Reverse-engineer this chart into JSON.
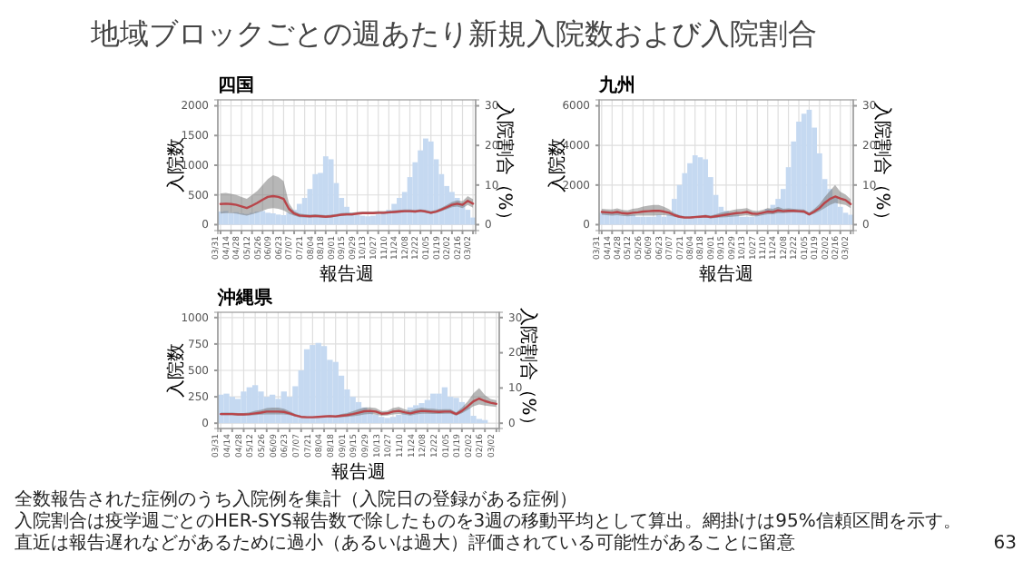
{
  "chart_data": [
    {
      "type": "bar",
      "title": "四国",
      "xlabel": "報告週",
      "ylabel": "入院数",
      "y2label": "入院割合（%）",
      "categories": [
        "03/31",
        null,
        "04/14",
        null,
        "04/28",
        null,
        "05/12",
        null,
        "05/26",
        null,
        "06/09",
        null,
        "06/23",
        null,
        "07/07",
        null,
        "07/21",
        null,
        "08/04",
        null,
        "08/18",
        null,
        "09/01",
        null,
        "09/15",
        null,
        "09/29",
        null,
        "10/13",
        null,
        "10/27",
        null,
        "11/10",
        null,
        "11/24",
        null,
        "12/08",
        null,
        "12/22",
        null,
        "01/05",
        null,
        "01/19",
        null,
        "02/02",
        null,
        "02/16",
        null,
        "03/02"
      ],
      "ylim": [
        -100,
        2100
      ],
      "yticks": [
        0,
        500,
        1000,
        1500,
        2000
      ],
      "y2lim": [
        -1.5,
        31.5
      ],
      "y2ticks": [
        0,
        10,
        20,
        30
      ],
      "grid": true,
      "series": [
        {
          "type": "bar",
          "color": "#c5d9f1",
          "values": [
            220,
            230,
            200,
            210,
            190,
            180,
            200,
            220,
            230,
            200,
            190,
            170,
            160,
            200,
            250,
            350,
            450,
            600,
            850,
            870,
            1150,
            1100,
            700,
            450,
            300,
            200,
            160,
            150,
            140,
            150,
            170,
            200,
            250,
            350,
            450,
            550,
            800,
            1050,
            1250,
            1450,
            1400,
            1100,
            850,
            650,
            550,
            450,
            350,
            250,
            120
          ]
        },
        {
          "type": "line",
          "axis": "y2",
          "color": "#b8454a",
          "values": [
            5.2,
            5.3,
            5.2,
            5.0,
            4.6,
            4.2,
            4.8,
            5.5,
            6.3,
            7.0,
            7.2,
            7.0,
            6.5,
            4.0,
            2.8,
            2.3,
            2.2,
            2.1,
            2.2,
            2.1,
            2.0,
            2.1,
            2.3,
            2.5,
            2.6,
            2.6,
            2.8,
            2.9,
            2.9,
            2.9,
            3.0,
            3.0,
            3.1,
            3.2,
            3.3,
            3.4,
            3.4,
            3.3,
            3.5,
            3.3,
            3.0,
            3.3,
            3.8,
            4.4,
            5.0,
            5.3,
            5.0,
            6.0,
            5.3
          ],
          "lower": [
            2.8,
            2.9,
            2.9,
            2.8,
            2.5,
            2.3,
            2.6,
            3.0,
            3.5,
            4.0,
            4.2,
            4.0,
            3.6,
            2.8,
            2.3,
            1.9,
            1.8,
            1.8,
            1.9,
            1.8,
            1.7,
            1.8,
            2.0,
            2.2,
            2.3,
            2.3,
            2.5,
            2.6,
            2.6,
            2.6,
            2.7,
            2.7,
            2.8,
            2.9,
            3.0,
            3.1,
            3.1,
            3.0,
            3.2,
            3.0,
            2.7,
            3.0,
            3.4,
            3.9,
            4.4,
            4.6,
            4.2,
            5.0,
            4.3
          ],
          "upper": [
            7.9,
            8.0,
            7.8,
            7.5,
            7.0,
            6.5,
            7.5,
            8.5,
            10.0,
            11.5,
            12.5,
            12.0,
            11.0,
            5.5,
            3.4,
            2.8,
            2.6,
            2.5,
            2.6,
            2.5,
            2.4,
            2.5,
            2.7,
            2.9,
            3.0,
            3.0,
            3.2,
            3.3,
            3.3,
            3.3,
            3.4,
            3.4,
            3.5,
            3.6,
            3.7,
            3.8,
            3.8,
            3.7,
            3.9,
            3.7,
            3.4,
            3.7,
            4.3,
            5.0,
            5.7,
            6.1,
            5.9,
            7.2,
            6.4
          ]
        }
      ]
    },
    {
      "type": "bar",
      "title": "九州",
      "xlabel": "報告週",
      "ylabel": "入院数",
      "y2label": "入院割合（%）",
      "categories": [
        "03/31",
        null,
        "04/14",
        null,
        "04/28",
        null,
        "05/12",
        null,
        "05/26",
        null,
        "06/09",
        null,
        "06/23",
        null,
        "07/07",
        null,
        "07/21",
        null,
        "08/04",
        null,
        "08/18",
        null,
        "09/01",
        null,
        "09/15",
        null,
        "09/29",
        null,
        "10/13",
        null,
        "10/27",
        null,
        "11/10",
        null,
        "11/24",
        null,
        "12/08",
        null,
        "12/22",
        null,
        "01/05",
        null,
        "01/19",
        null,
        "02/02",
        null,
        "02/16",
        null,
        "03/02"
      ],
      "ylim": [
        -300,
        6300
      ],
      "yticks": [
        0,
        2000,
        4000,
        6000
      ],
      "y2lim": [
        -1.5,
        31.5
      ],
      "y2ticks": [
        0,
        10,
        20,
        30
      ],
      "grid": true,
      "series": [
        {
          "type": "bar",
          "color": "#c5d9f1",
          "values": [
            600,
            600,
            600,
            600,
            500,
            500,
            500,
            400,
            400,
            400,
            400,
            500,
            400,
            500,
            1300,
            2000,
            2600,
            3100,
            3500,
            3400,
            3300,
            2400,
            1500,
            900,
            700,
            600,
            500,
            400,
            400,
            400,
            500,
            600,
            800,
            1000,
            1300,
            1800,
            2900,
            4200,
            5200,
            5600,
            5800,
            4900,
            3600,
            2300,
            1800,
            1400,
            900,
            600,
            500
          ]
        },
        {
          "type": "line",
          "axis": "y2",
          "color": "#b8454a",
          "values": [
            3.2,
            3.1,
            3.0,
            3.2,
            2.9,
            2.8,
            3.0,
            3.1,
            3.3,
            3.4,
            3.5,
            3.5,
            3.3,
            3.0,
            2.4,
            2.0,
            1.8,
            1.8,
            1.9,
            2.0,
            2.1,
            1.9,
            2.1,
            2.3,
            2.5,
            2.7,
            2.9,
            3.0,
            3.2,
            2.8,
            2.7,
            3.0,
            3.3,
            3.2,
            3.6,
            3.4,
            3.5,
            3.5,
            3.4,
            3.3,
            2.6,
            3.3,
            4.2,
            5.5,
            6.5,
            7.1,
            6.6,
            6.2,
            5.2
          ],
          "lower": [
            2.5,
            2.4,
            2.3,
            2.4,
            2.2,
            2.1,
            2.2,
            2.3,
            2.3,
            2.3,
            2.3,
            2.4,
            2.4,
            2.3,
            2.0,
            1.7,
            1.6,
            1.6,
            1.7,
            1.8,
            1.8,
            1.6,
            1.7,
            1.8,
            1.9,
            2.0,
            2.1,
            2.2,
            2.4,
            2.1,
            2.1,
            2.4,
            2.6,
            2.6,
            2.9,
            2.9,
            3.0,
            3.1,
            3.0,
            2.9,
            2.3,
            2.8,
            3.4,
            4.2,
            5.0,
            5.5,
            5.2,
            5.0,
            4.2
          ],
          "upper": [
            4.0,
            3.9,
            3.8,
            4.1,
            3.7,
            3.6,
            4.0,
            4.2,
            4.6,
            4.8,
            5.0,
            5.0,
            4.5,
            3.9,
            2.9,
            2.4,
            2.1,
            2.1,
            2.2,
            2.3,
            2.5,
            2.3,
            2.6,
            3.0,
            3.3,
            3.6,
            3.9,
            4.0,
            4.2,
            3.6,
            3.4,
            3.7,
            4.2,
            4.0,
            4.5,
            4.0,
            4.1,
            4.0,
            3.9,
            3.8,
            3.0,
            4.0,
            5.2,
            7.0,
            8.5,
            10.0,
            8.3,
            7.6,
            6.4
          ]
        }
      ]
    },
    {
      "type": "bar",
      "title": "沖縄県",
      "xlabel": "報告週",
      "ylabel": "入院数",
      "y2label": "入院割合（%）",
      "categories": [
        "03/31",
        null,
        "04/14",
        null,
        "04/28",
        null,
        "05/12",
        null,
        "05/26",
        null,
        "06/09",
        null,
        "06/23",
        null,
        "07/07",
        null,
        "07/21",
        null,
        "08/04",
        null,
        "08/18",
        null,
        "09/01",
        null,
        "09/15",
        null,
        "09/29",
        null,
        "10/13",
        null,
        "10/27",
        null,
        "11/10",
        null,
        "11/24",
        null,
        "12/08",
        null,
        "12/22",
        null,
        "01/05",
        null,
        "01/19",
        null,
        "02/02",
        null,
        "02/16",
        null,
        "03/02"
      ],
      "ylim": [
        -50,
        1050
      ],
      "yticks": [
        0,
        250,
        500,
        750,
        1000
      ],
      "y2lim": [
        -1.5,
        31.5
      ],
      "y2ticks": [
        0,
        10,
        20,
        30
      ],
      "grid": true,
      "series": [
        {
          "type": "bar",
          "color": "#c5d9f1",
          "values": [
            270,
            280,
            250,
            230,
            300,
            340,
            360,
            300,
            250,
            270,
            230,
            300,
            250,
            350,
            500,
            700,
            740,
            760,
            730,
            600,
            580,
            450,
            320,
            250,
            200,
            150,
            120,
            80,
            60,
            50,
            60,
            80,
            100,
            150,
            170,
            190,
            220,
            280,
            280,
            340,
            250,
            240,
            200,
            150,
            70,
            40,
            30,
            null,
            null
          ]
        },
        {
          "type": "line",
          "axis": "y2",
          "color": "#b8454a",
          "values": [
            2.6,
            2.6,
            2.6,
            2.5,
            2.5,
            2.6,
            2.8,
            3.0,
            3.3,
            3.3,
            3.3,
            3.2,
            2.8,
            2.2,
            1.8,
            1.7,
            1.7,
            1.8,
            1.9,
            2.0,
            1.9,
            2.1,
            2.3,
            2.6,
            3.0,
            3.4,
            3.5,
            3.3,
            2.7,
            2.8,
            3.3,
            3.5,
            3.1,
            2.8,
            3.2,
            3.5,
            3.4,
            3.3,
            3.2,
            3.3,
            3.3,
            2.6,
            3.5,
            4.8,
            6.2,
            7.0,
            6.3,
            5.8,
            5.5
          ],
          "lower": [
            2.3,
            2.3,
            2.3,
            2.2,
            2.2,
            2.2,
            2.3,
            2.4,
            2.5,
            2.5,
            2.5,
            2.5,
            2.3,
            1.9,
            1.6,
            1.5,
            1.5,
            1.6,
            1.7,
            1.7,
            1.6,
            1.7,
            1.8,
            2.0,
            2.2,
            2.5,
            2.6,
            2.4,
            2.1,
            2.2,
            2.5,
            2.6,
            2.4,
            2.2,
            2.5,
            2.7,
            2.7,
            2.6,
            2.6,
            2.7,
            2.7,
            2.2,
            2.8,
            3.8,
            4.8,
            5.3,
            5.0,
            4.8,
            4.6
          ],
          "upper": [
            3.0,
            3.0,
            3.0,
            2.9,
            2.9,
            3.1,
            3.5,
            3.8,
            4.3,
            4.4,
            4.4,
            4.1,
            3.4,
            2.6,
            2.1,
            1.9,
            1.9,
            2.0,
            2.1,
            2.3,
            2.2,
            2.6,
            2.9,
            3.4,
            4.0,
            4.4,
            4.5,
            4.3,
            3.4,
            3.5,
            4.3,
            4.6,
            4.0,
            3.5,
            4.1,
            4.4,
            4.2,
            4.1,
            3.9,
            4.0,
            4.0,
            3.1,
            4.4,
            6.2,
            8.5,
            10.0,
            8.0,
            6.9,
            6.5
          ]
        }
      ]
    },
    {
      "type": "other",
      "title": "地域ブロックごとの週あたり新規入院数および入院割合",
      "annotations": [
        "全数報告された症例のうち入院例を集計（入院日の登録がある症例）",
        "入院割合は疫学週ごとのHER-SYS報告数で除したものを3週の移動平均として算出。網掛けは95%信頼区間を示す。",
        "直近は報告遅れなどがあるために過小（あるいは過大）評価されている可能性があることに留意",
        "63"
      ]
    }
  ]
}
